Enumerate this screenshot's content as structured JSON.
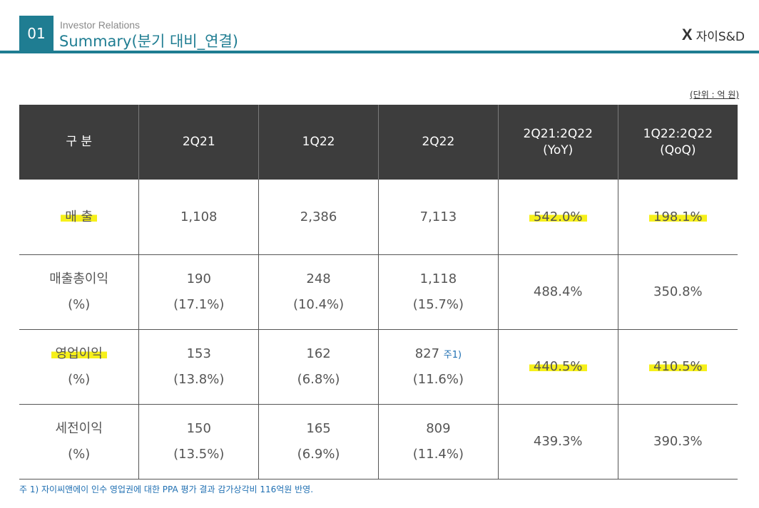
{
  "header": {
    "slide_number": "01",
    "subtitle": "Investor Relations",
    "title": "Summary(분기 대비_연결)",
    "logo_mark": "X",
    "logo_text": "자이S&D"
  },
  "unit_label": "(단위 : 억 원)",
  "table": {
    "columns": [
      "구  분",
      "2Q21",
      "1Q22",
      "2Q22",
      "2Q21:2Q22",
      "1Q22:2Q22"
    ],
    "column_sub": [
      "",
      "",
      "",
      "",
      "(YoY)",
      "(QoQ)"
    ],
    "rows": [
      {
        "label": "매  출",
        "label_sub": "",
        "c1": "1,108",
        "c1_sub": "",
        "c2": "2,386",
        "c2_sub": "",
        "c3": "7,113",
        "c3_sub": "",
        "c3_note": "",
        "c4": "542.0%",
        "c5": "198.1%"
      },
      {
        "label": "매출총이익",
        "label_sub": "(%)",
        "c1": "190",
        "c1_sub": "(17.1%)",
        "c2": "248",
        "c2_sub": "(10.4%)",
        "c3": "1,118",
        "c3_sub": "(15.7%)",
        "c3_note": "",
        "c4": "488.4%",
        "c5": "350.8%"
      },
      {
        "label": "영업이익",
        "label_sub": "(%)",
        "c1": "153",
        "c1_sub": "(13.8%)",
        "c2": "162",
        "c2_sub": "(6.8%)",
        "c3": "827",
        "c3_sub": "(11.6%)",
        "c3_note": "주1)",
        "c4": "440.5%",
        "c5": "410.5%"
      },
      {
        "label": "세전이익",
        "label_sub": "(%)",
        "c1": "150",
        "c1_sub": "(13.5%)",
        "c2": "165",
        "c2_sub": "(6.9%)",
        "c3": "809",
        "c3_sub": "(11.4%)",
        "c3_note": "",
        "c4": "439.3%",
        "c5": "390.3%"
      }
    ]
  },
  "footnote": "주 1) 자이씨앤에이 인수 영업권에 대한 PPA 평가 결과 감가상각비 116억원 반영.",
  "colors": {
    "accent": "#1f7d92",
    "header_bg": "#3d3d3d",
    "highlight": "#f6f01a",
    "note": "#1f6fb2"
  }
}
